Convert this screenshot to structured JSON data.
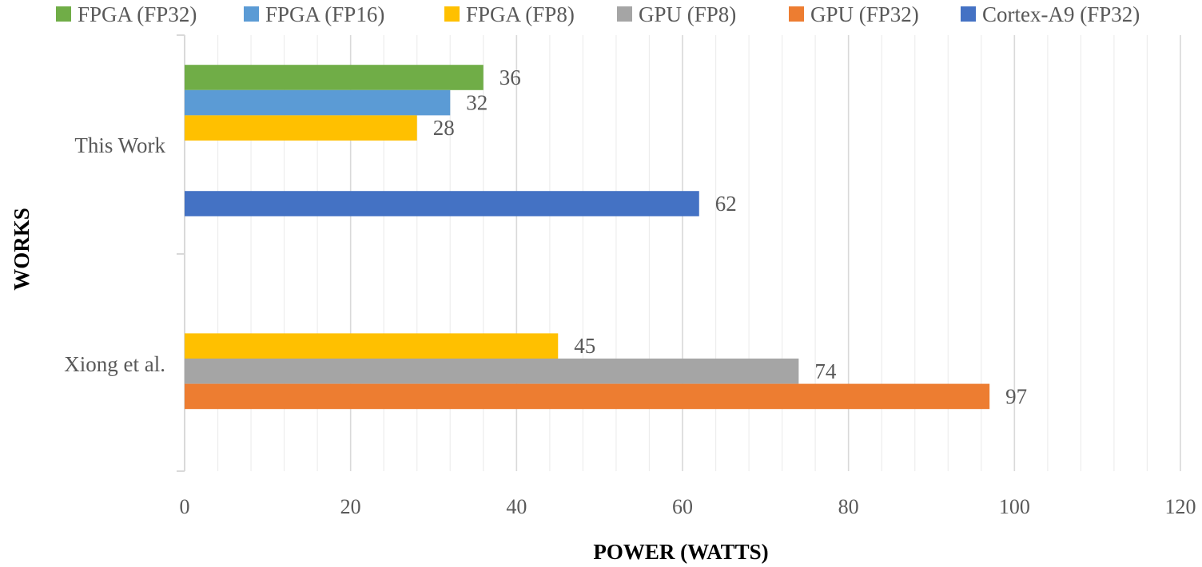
{
  "chart_data": {
    "type": "bar",
    "orientation": "horizontal",
    "title": "",
    "xlabel": "POWER (WATTS)",
    "ylabel": "WORKS",
    "xlim": [
      0,
      120
    ],
    "x_ticks": [
      0,
      20,
      40,
      60,
      80,
      100,
      120
    ],
    "grid": true,
    "legend_position": "top",
    "categories": [
      "This Work",
      "Xiong et al."
    ],
    "series": [
      {
        "name": "FPGA (FP32)",
        "color": "#70AD47",
        "values": [
          36,
          null
        ]
      },
      {
        "name": "FPGA (FP16)",
        "color": "#5B9BD5",
        "values": [
          32,
          null
        ]
      },
      {
        "name": "FPGA (FP8)",
        "color": "#FFC000",
        "values": [
          28,
          45
        ]
      },
      {
        "name": "GPU (FP8)",
        "color": "#A5A5A5",
        "values": [
          null,
          74
        ]
      },
      {
        "name": "GPU (FP32)",
        "color": "#ED7D31",
        "values": [
          null,
          97
        ]
      },
      {
        "name": "Cortex-A9 (FP32)",
        "color": "#4472C4",
        "values": [
          62,
          null
        ]
      }
    ]
  }
}
